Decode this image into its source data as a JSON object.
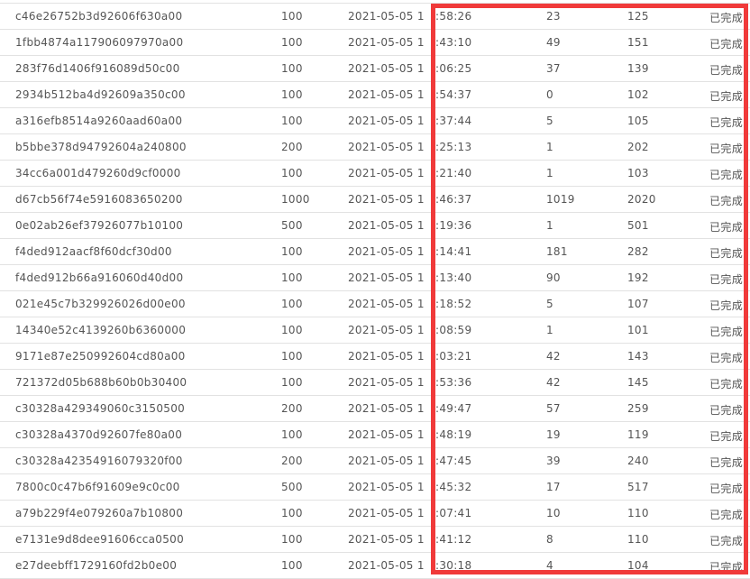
{
  "highlight_color": "#f03a3a",
  "rows": [
    {
      "id": "c46e26752b3d92606f630a00",
      "amount": "100",
      "date": "2021-05-05 1",
      "time": ":58:26",
      "v1": "23",
      "v2": "125",
      "status": "已完成"
    },
    {
      "id": "1fbb4874a117906097970a00",
      "amount": "100",
      "date": "2021-05-05 1",
      "time": ":43:10",
      "v1": "49",
      "v2": "151",
      "status": "已完成"
    },
    {
      "id": "283f76d1406f916089d50c00",
      "amount": "100",
      "date": "2021-05-05 1",
      "time": ":06:25",
      "v1": "37",
      "v2": "139",
      "status": "已完成"
    },
    {
      "id": "2934b512ba4d92609a350c00",
      "amount": "100",
      "date": "2021-05-05 1",
      "time": ":54:37",
      "v1": "0",
      "v2": "102",
      "status": "已完成"
    },
    {
      "id": "a316efb8514a9260aad60a00",
      "amount": "100",
      "date": "2021-05-05 1",
      "time": ":37:44",
      "v1": "5",
      "v2": "105",
      "status": "已完成"
    },
    {
      "id": "b5bbe378d94792604a240800",
      "amount": "200",
      "date": "2021-05-05 1",
      "time": ":25:13",
      "v1": "1",
      "v2": "202",
      "status": "已完成"
    },
    {
      "id": "34cc6a001d479260d9cf0000",
      "amount": "100",
      "date": "2021-05-05 1",
      "time": ":21:40",
      "v1": "1",
      "v2": "103",
      "status": "已完成"
    },
    {
      "id": "d67cb56f74e5916083650200",
      "amount": "1000",
      "date": "2021-05-05 1",
      "time": ":46:37",
      "v1": "1019",
      "v2": "2020",
      "status": "已完成"
    },
    {
      "id": "0e02ab26ef37926077b10100",
      "amount": "500",
      "date": "2021-05-05 1",
      "time": ":19:36",
      "v1": "1",
      "v2": "501",
      "status": "已完成"
    },
    {
      "id": "f4ded912aacf8f60dcf30d00",
      "amount": "100",
      "date": "2021-05-05 1",
      "time": ":14:41",
      "v1": "181",
      "v2": "282",
      "status": "已完成"
    },
    {
      "id": "f4ded912b66a916060d40d00",
      "amount": "100",
      "date": "2021-05-05 1",
      "time": ":13:40",
      "v1": "90",
      "v2": "192",
      "status": "已完成"
    },
    {
      "id": "021e45c7b329926026d00e00",
      "amount": "100",
      "date": "2021-05-05 1",
      "time": ":18:52",
      "v1": "5",
      "v2": "107",
      "status": "已完成"
    },
    {
      "id": "14340e52c4139260b6360000",
      "amount": "100",
      "date": "2021-05-05 1",
      "time": ":08:59",
      "v1": "1",
      "v2": "101",
      "status": "已完成"
    },
    {
      "id": "9171e87e250992604cd80a00",
      "amount": "100",
      "date": "2021-05-05 1",
      "time": ":03:21",
      "v1": "42",
      "v2": "143",
      "status": "已完成"
    },
    {
      "id": "721372d05b688b60b0b30400",
      "amount": "100",
      "date": "2021-05-05 1",
      "time": ":53:36",
      "v1": "42",
      "v2": "145",
      "status": "已完成"
    },
    {
      "id": "c30328a429349060c3150500",
      "amount": "200",
      "date": "2021-05-05 1",
      "time": ":49:47",
      "v1": "57",
      "v2": "259",
      "status": "已完成"
    },
    {
      "id": "c30328a4370d92607fe80a00",
      "amount": "100",
      "date": "2021-05-05 1",
      "time": ":48:19",
      "v1": "19",
      "v2": "119",
      "status": "已完成"
    },
    {
      "id": "c30328a42354916079320f00",
      "amount": "200",
      "date": "2021-05-05 1",
      "time": ":47:45",
      "v1": "39",
      "v2": "240",
      "status": "已完成"
    },
    {
      "id": "7800c0c47b6f91609e9c0c00",
      "amount": "500",
      "date": "2021-05-05 1",
      "time": ":45:32",
      "v1": "17",
      "v2": "517",
      "status": "已完成"
    },
    {
      "id": "a79b229f4e079260a7b10800",
      "amount": "100",
      "date": "2021-05-05 1",
      "time": ":07:41",
      "v1": "10",
      "v2": "110",
      "status": "已完成"
    },
    {
      "id": "e7131e9d8dee91606cca0500",
      "amount": "100",
      "date": "2021-05-05 1",
      "time": ":41:12",
      "v1": "8",
      "v2": "110",
      "status": "已完成"
    },
    {
      "id": "e27deebff1729160fd2b0e00",
      "amount": "100",
      "date": "2021-05-05 1",
      "time": ":30:18",
      "v1": "4",
      "v2": "104",
      "status": "已完成"
    }
  ]
}
